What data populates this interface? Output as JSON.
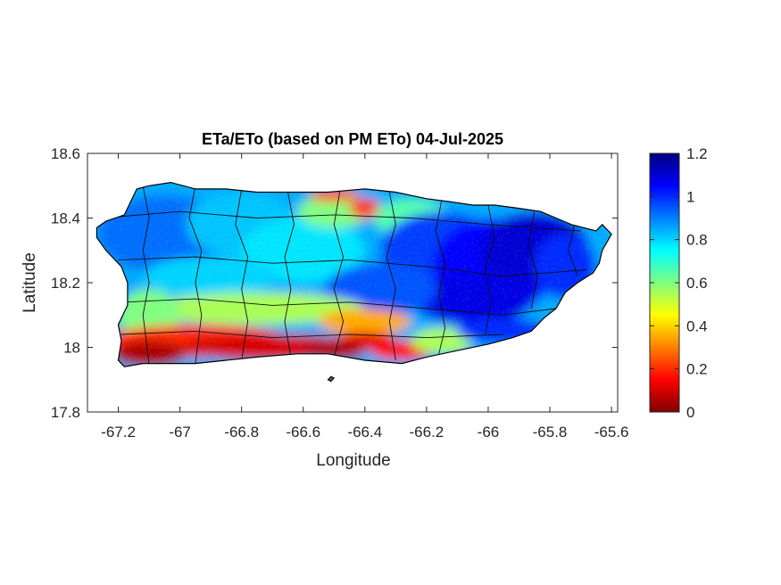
{
  "chart_data": {
    "type": "heatmap",
    "title": "ETa/ETo (based on PM ETo) 04-Jul-2025",
    "xlabel": "Longitude",
    "ylabel": "Latitude",
    "xlim": [
      -67.3,
      -65.58
    ],
    "ylim": [
      17.8,
      18.6
    ],
    "xticks": [
      -67.2,
      -67,
      -66.8,
      -66.6,
      -66.4,
      -66.2,
      -66,
      -65.8,
      -65.6
    ],
    "xtick_labels": [
      "-67.2",
      "-67",
      "-66.8",
      "-66.6",
      "-66.4",
      "-66.2",
      "-66",
      "-65.8",
      "-65.6"
    ],
    "yticks": [
      17.8,
      18,
      18.2,
      18.4,
      18.6
    ],
    "ytick_labels": [
      "17.8",
      "18",
      "18.2",
      "18.4",
      "18.6"
    ],
    "colorbar": {
      "colormap": "jet",
      "range": [
        0,
        1.2
      ],
      "ticks": [
        0,
        0.2,
        0.4,
        0.6,
        0.8,
        1,
        1.2
      ],
      "tick_labels": [
        "0",
        "0.2",
        "0.4",
        "0.6",
        "0.8",
        "1",
        "1.2"
      ]
    },
    "region": "Puerto Rico",
    "grid": false,
    "value_pattern": [
      {
        "area": "south coast",
        "lon_range": [
          -67.2,
          -66.4
        ],
        "approx_value": 0.05
      },
      {
        "area": "south-central",
        "lon_range": [
          -66.5,
          -66.2
        ],
        "approx_value": 0.15
      },
      {
        "area": "south-central band",
        "lon_range": [
          -67.2,
          -66.3
        ],
        "approx_value": 0.55
      },
      {
        "area": "west interior",
        "lon_range": [
          -67.2,
          -66.7
        ],
        "approx_value": 0.9
      },
      {
        "area": "central interior",
        "lon_range": [
          -66.7,
          -66.2
        ],
        "approx_value": 0.8
      },
      {
        "area": "north-central coast",
        "lon_range": [
          -66.6,
          -66.3
        ],
        "approx_value": 0.25
      },
      {
        "area": "east",
        "lon_range": [
          -66.2,
          -65.6
        ],
        "approx_value": 1.05
      }
    ]
  }
}
